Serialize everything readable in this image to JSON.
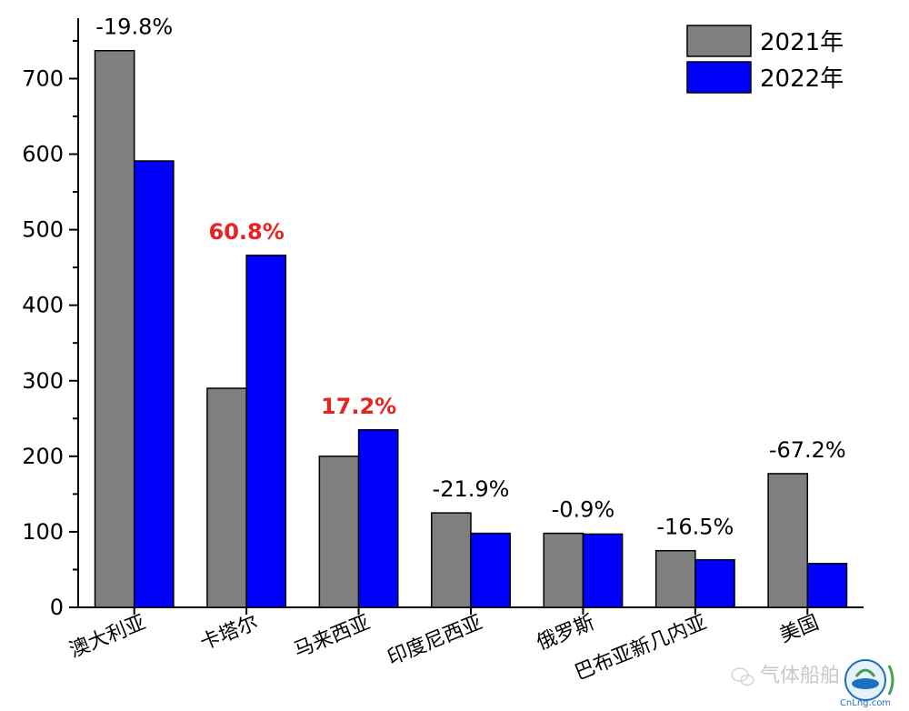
{
  "chart_data": {
    "type": "bar",
    "categories": [
      "澳大利亚",
      "卡塔尔",
      "马来西亚",
      "印度尼西亚",
      "俄罗斯",
      "巴布亚新几内亚",
      "美国"
    ],
    "series": [
      {
        "name": "2021年",
        "color": "#7f7f7f",
        "values": [
          737,
          290,
          200,
          125,
          98,
          75,
          177
        ]
      },
      {
        "name": "2022年",
        "color": "#0000ff",
        "values": [
          591,
          466,
          235,
          98,
          97,
          63,
          58
        ]
      }
    ],
    "data_labels": [
      "-19.8%",
      "60.8%",
      "17.2%",
      "-21.9%",
      "-0.9%",
      "-16.5%",
      "-67.2%"
    ],
    "data_label_highlight": [
      false,
      true,
      true,
      false,
      false,
      false,
      false
    ],
    "highlight_color": "#e8221f",
    "yticks": [
      0,
      100,
      200,
      300,
      400,
      500,
      600,
      700
    ],
    "ylim": [
      0,
      780
    ],
    "grid": false,
    "legend_position": "top-right"
  },
  "watermark": {
    "text": "气体船舶",
    "site": "CnLng.com"
  }
}
